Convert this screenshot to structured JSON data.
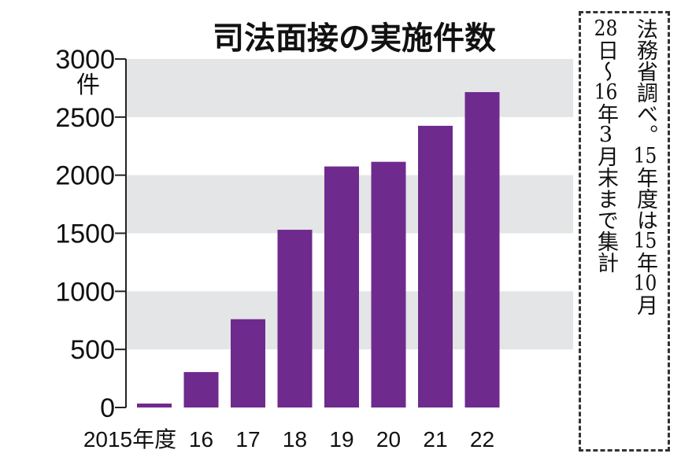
{
  "chart_data": {
    "type": "bar",
    "title": "司法面接の実施件数",
    "ylabel": "件",
    "xlabel": "",
    "categories": [
      "2015年度",
      "16",
      "17",
      "18",
      "19",
      "20",
      "21",
      "22"
    ],
    "values": [
      34,
      305,
      760,
      1530,
      2075,
      2115,
      2425,
      2715
    ],
    "ylim": [
      0,
      3000
    ],
    "yticks": [
      "0",
      "500",
      "1000",
      "1500",
      "2000",
      "2500",
      "3000"
    ],
    "grid": "alternating horizontal bands",
    "bar_color": "#6f2a8e",
    "band_color": "#e3e5e6"
  },
  "note": {
    "line1": "法務省調べ。15年度は15年10月",
    "line2": "28日～16年3月末まで集計"
  }
}
